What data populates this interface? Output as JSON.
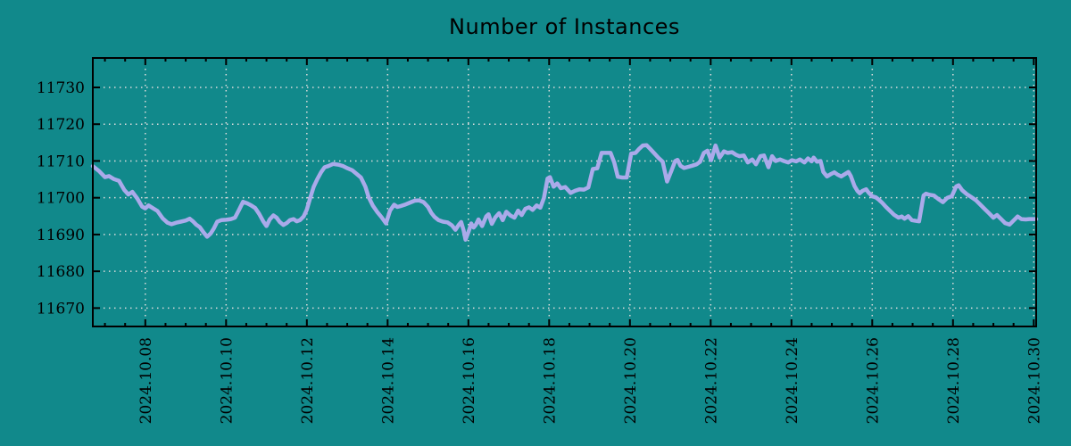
{
  "chart_data": {
    "type": "line",
    "title": "Number of Instances",
    "xlabel": "",
    "ylabel": "",
    "legend": "none",
    "grid": "dotted",
    "colors": {
      "background": "#11898b",
      "line": "#aaaaea",
      "grid": "#dcdcdc",
      "axis": "#000000",
      "text": "#000000"
    },
    "x_axis": {
      "tick_labels": [
        "2024.10.08",
        "2024.10.10",
        "2024.10.12",
        "2024.10.14",
        "2024.10.16",
        "2024.10.18",
        "2024.10.20",
        "2024.10.22",
        "2024.10.24",
        "2024.10.26",
        "2024.10.28",
        "2024.10.30"
      ],
      "tick_days": [
        8,
        10,
        12,
        14,
        16,
        18,
        20,
        22,
        24,
        26,
        28,
        30
      ],
      "minor_tick_step_days": 0.5,
      "range_days": [
        6.7,
        30.06
      ]
    },
    "y_axis": {
      "ticks": [
        11670,
        11680,
        11690,
        11700,
        11710,
        11720,
        11730
      ],
      "range": [
        11665,
        11738
      ]
    },
    "series": [
      {
        "name": "instances",
        "points": [
          [
            6.7,
            11708.6
          ],
          [
            6.85,
            11707.3
          ],
          [
            7.0,
            11705.6
          ],
          [
            7.1,
            11705.9
          ],
          [
            7.22,
            11705.1
          ],
          [
            7.35,
            11704.6
          ],
          [
            7.48,
            11702.1
          ],
          [
            7.58,
            11700.9
          ],
          [
            7.68,
            11701.6
          ],
          [
            7.8,
            11699.8
          ],
          [
            7.92,
            11697.6
          ],
          [
            8.0,
            11697.1
          ],
          [
            8.08,
            11697.9
          ],
          [
            8.18,
            11697.2
          ],
          [
            8.3,
            11696.4
          ],
          [
            8.43,
            11694.4
          ],
          [
            8.55,
            11693.2
          ],
          [
            8.65,
            11692.8
          ],
          [
            8.76,
            11693.2
          ],
          [
            8.88,
            11693.5
          ],
          [
            9.0,
            11693.8
          ],
          [
            9.1,
            11694.3
          ],
          [
            9.18,
            11693.6
          ],
          [
            9.26,
            11692.7
          ],
          [
            9.35,
            11692.0
          ],
          [
            9.44,
            11690.6
          ],
          [
            9.53,
            11689.4
          ],
          [
            9.62,
            11690.3
          ],
          [
            9.7,
            11691.7
          ],
          [
            9.78,
            11693.5
          ],
          [
            9.88,
            11693.9
          ],
          [
            10.0,
            11694.0
          ],
          [
            10.12,
            11694.2
          ],
          [
            10.22,
            11694.6
          ],
          [
            10.32,
            11696.7
          ],
          [
            10.42,
            11698.9
          ],
          [
            10.52,
            11698.5
          ],
          [
            10.62,
            11697.9
          ],
          [
            10.72,
            11697.2
          ],
          [
            10.82,
            11695.6
          ],
          [
            10.92,
            11693.6
          ],
          [
            11.0,
            11692.3
          ],
          [
            11.08,
            11694.1
          ],
          [
            11.17,
            11695.2
          ],
          [
            11.25,
            11694.6
          ],
          [
            11.33,
            11693.4
          ],
          [
            11.42,
            11692.6
          ],
          [
            11.5,
            11693.1
          ],
          [
            11.58,
            11693.9
          ],
          [
            11.67,
            11694.2
          ],
          [
            11.75,
            11693.6
          ],
          [
            11.83,
            11693.9
          ],
          [
            11.92,
            11694.9
          ],
          [
            12.0,
            11696.8
          ],
          [
            12.08,
            11699.8
          ],
          [
            12.17,
            11703.0
          ],
          [
            12.26,
            11705.1
          ],
          [
            12.35,
            11706.9
          ],
          [
            12.44,
            11708.3
          ],
          [
            12.53,
            11708.6
          ],
          [
            12.65,
            11709.2
          ],
          [
            12.78,
            11709.0
          ],
          [
            12.9,
            11708.6
          ],
          [
            13.01,
            11708.0
          ],
          [
            13.12,
            11707.5
          ],
          [
            13.23,
            11706.5
          ],
          [
            13.34,
            11705.5
          ],
          [
            13.45,
            11703.0
          ],
          [
            13.53,
            11700.2
          ],
          [
            13.63,
            11697.9
          ],
          [
            13.74,
            11696.2
          ],
          [
            13.85,
            11694.7
          ],
          [
            13.96,
            11693.0
          ],
          [
            14.06,
            11696.5
          ],
          [
            14.16,
            11698.1
          ],
          [
            14.24,
            11697.5
          ],
          [
            14.34,
            11697.8
          ],
          [
            14.45,
            11698.2
          ],
          [
            14.56,
            11698.7
          ],
          [
            14.67,
            11699.2
          ],
          [
            14.78,
            11699.3
          ],
          [
            14.89,
            11698.8
          ],
          [
            15.0,
            11697.5
          ],
          [
            15.08,
            11695.9
          ],
          [
            15.16,
            11694.8
          ],
          [
            15.26,
            11693.9
          ],
          [
            15.37,
            11693.5
          ],
          [
            15.48,
            11693.3
          ],
          [
            15.59,
            11692.5
          ],
          [
            15.68,
            11691.3
          ],
          [
            15.76,
            11692.6
          ],
          [
            15.82,
            11693.4
          ],
          [
            15.88,
            11691.2
          ],
          [
            15.93,
            11688.6
          ],
          [
            16.01,
            11691.0
          ],
          [
            16.07,
            11693.0
          ],
          [
            16.13,
            11691.9
          ],
          [
            16.18,
            11692.6
          ],
          [
            16.25,
            11694.1
          ],
          [
            16.34,
            11692.3
          ],
          [
            16.44,
            11694.9
          ],
          [
            16.5,
            11695.5
          ],
          [
            16.58,
            11692.9
          ],
          [
            16.67,
            11694.7
          ],
          [
            16.76,
            11695.8
          ],
          [
            16.85,
            11693.9
          ],
          [
            16.94,
            11696.2
          ],
          [
            17.05,
            11695.1
          ],
          [
            17.14,
            11694.6
          ],
          [
            17.23,
            11696.5
          ],
          [
            17.32,
            11695.3
          ],
          [
            17.41,
            11697.0
          ],
          [
            17.5,
            11697.4
          ],
          [
            17.59,
            11696.7
          ],
          [
            17.69,
            11697.9
          ],
          [
            17.78,
            11697.3
          ],
          [
            17.87,
            11699.9
          ],
          [
            17.96,
            11705.2
          ],
          [
            18.02,
            11705.6
          ],
          [
            18.11,
            11703.0
          ],
          [
            18.2,
            11703.9
          ],
          [
            18.29,
            11702.6
          ],
          [
            18.4,
            11702.9
          ],
          [
            18.53,
            11701.3
          ],
          [
            18.64,
            11701.9
          ],
          [
            18.75,
            11702.3
          ],
          [
            18.86,
            11702.2
          ],
          [
            18.97,
            11702.8
          ],
          [
            19.08,
            11707.8
          ],
          [
            19.19,
            11708.0
          ],
          [
            19.3,
            11712.2
          ],
          [
            19.41,
            11712.2
          ],
          [
            19.52,
            11712.2
          ],
          [
            19.61,
            11709.6
          ],
          [
            19.7,
            11705.7
          ],
          [
            19.81,
            11705.5
          ],
          [
            19.92,
            11705.5
          ],
          [
            20.03,
            11712.0
          ],
          [
            20.14,
            11712.2
          ],
          [
            20.23,
            11713.3
          ],
          [
            20.32,
            11714.2
          ],
          [
            20.41,
            11714.3
          ],
          [
            20.5,
            11713.3
          ],
          [
            20.61,
            11712.0
          ],
          [
            20.72,
            11710.7
          ],
          [
            20.81,
            11709.8
          ],
          [
            20.92,
            11704.4
          ],
          [
            21.03,
            11707.4
          ],
          [
            21.12,
            11710.0
          ],
          [
            21.18,
            11710.3
          ],
          [
            21.25,
            11708.7
          ],
          [
            21.34,
            11708.1
          ],
          [
            21.45,
            11708.4
          ],
          [
            21.54,
            11708.7
          ],
          [
            21.65,
            11709.1
          ],
          [
            21.74,
            11709.8
          ],
          [
            21.83,
            11712.2
          ],
          [
            21.92,
            11712.8
          ],
          [
            22.01,
            11710.2
          ],
          [
            22.12,
            11714.2
          ],
          [
            22.22,
            11710.9
          ],
          [
            22.33,
            11712.6
          ],
          [
            22.42,
            11712.2
          ],
          [
            22.53,
            11712.4
          ],
          [
            22.62,
            11711.7
          ],
          [
            22.71,
            11711.3
          ],
          [
            22.82,
            11711.5
          ],
          [
            22.92,
            11709.6
          ],
          [
            23.03,
            11710.4
          ],
          [
            23.12,
            11709.1
          ],
          [
            23.23,
            11711.3
          ],
          [
            23.32,
            11711.5
          ],
          [
            23.43,
            11708.3
          ],
          [
            23.52,
            11711.3
          ],
          [
            23.61,
            11710.0
          ],
          [
            23.72,
            11710.4
          ],
          [
            23.81,
            11710.0
          ],
          [
            23.92,
            11709.6
          ],
          [
            24.01,
            11710.2
          ],
          [
            24.12,
            11709.9
          ],
          [
            24.21,
            11710.4
          ],
          [
            24.32,
            11709.6
          ],
          [
            24.41,
            11710.7
          ],
          [
            24.5,
            11709.9
          ],
          [
            24.55,
            11710.9
          ],
          [
            24.63,
            11709.8
          ],
          [
            24.72,
            11710.0
          ],
          [
            24.79,
            11707.0
          ],
          [
            24.88,
            11705.8
          ],
          [
            24.97,
            11706.4
          ],
          [
            25.06,
            11706.9
          ],
          [
            25.14,
            11706.3
          ],
          [
            25.23,
            11705.8
          ],
          [
            25.32,
            11706.4
          ],
          [
            25.41,
            11707.0
          ],
          [
            25.47,
            11705.9
          ],
          [
            25.56,
            11703.2
          ],
          [
            25.63,
            11701.9
          ],
          [
            25.69,
            11701.2
          ],
          [
            25.76,
            11701.9
          ],
          [
            25.85,
            11702.3
          ],
          [
            25.91,
            11701.4
          ],
          [
            26.0,
            11700.4
          ],
          [
            26.09,
            11700.1
          ],
          [
            26.16,
            11699.5
          ],
          [
            26.25,
            11698.6
          ],
          [
            26.34,
            11697.5
          ],
          [
            26.45,
            11696.3
          ],
          [
            26.54,
            11695.4
          ],
          [
            26.65,
            11694.6
          ],
          [
            26.73,
            11694.9
          ],
          [
            26.8,
            11694.3
          ],
          [
            26.89,
            11695.0
          ],
          [
            26.98,
            11693.9
          ],
          [
            27.09,
            11693.7
          ],
          [
            27.16,
            11693.6
          ],
          [
            27.27,
            11700.6
          ],
          [
            27.33,
            11701.1
          ],
          [
            27.42,
            11700.8
          ],
          [
            27.53,
            11700.6
          ],
          [
            27.64,
            11699.6
          ],
          [
            27.75,
            11698.8
          ],
          [
            27.86,
            11700.0
          ],
          [
            27.97,
            11700.4
          ],
          [
            28.08,
            11703.1
          ],
          [
            28.14,
            11703.4
          ],
          [
            28.23,
            11702.0
          ],
          [
            28.34,
            11701.0
          ],
          [
            28.45,
            11700.2
          ],
          [
            28.56,
            11699.4
          ],
          [
            28.67,
            11698.2
          ],
          [
            28.78,
            11697.0
          ],
          [
            28.89,
            11695.8
          ],
          [
            29.0,
            11694.6
          ],
          [
            29.09,
            11695.3
          ],
          [
            29.2,
            11694.1
          ],
          [
            29.29,
            11693.1
          ],
          [
            29.4,
            11692.7
          ],
          [
            29.49,
            11693.7
          ],
          [
            29.6,
            11694.9
          ],
          [
            29.69,
            11694.2
          ],
          [
            29.8,
            11694.1
          ],
          [
            29.89,
            11694.2
          ],
          [
            30.0,
            11694.2
          ],
          [
            30.06,
            11694.2
          ]
        ]
      }
    ]
  }
}
